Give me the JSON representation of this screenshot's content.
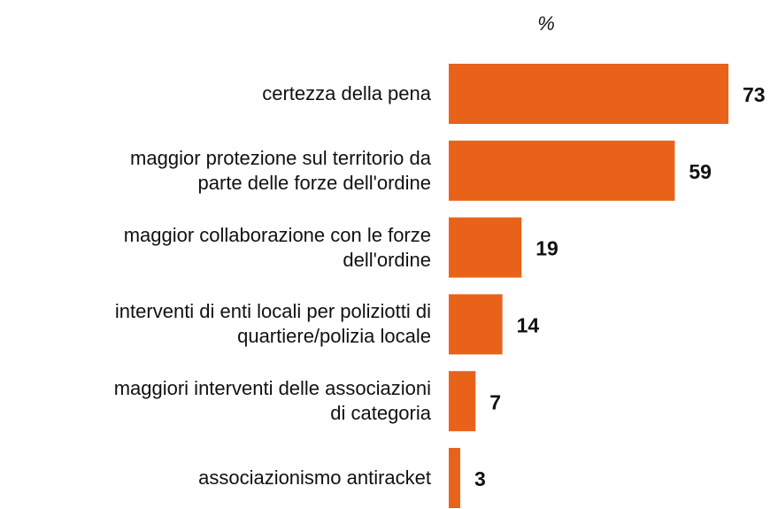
{
  "chart_data": {
    "type": "bar",
    "orientation": "horizontal",
    "title": "%",
    "categories": [
      "certezza della pena",
      "maggior protezione sul territorio da\nparte delle forze dell'ordine",
      "maggior collaborazione con le forze\ndell'ordine",
      "interventi di enti locali per poliziotti di\nquartiere/polizia locale",
      "maggiori interventi delle associazioni\ndi categoria",
      "associazionismo antiracket"
    ],
    "values": [
      73,
      59,
      19,
      14,
      7,
      3
    ],
    "color": "#e8621a"
  }
}
